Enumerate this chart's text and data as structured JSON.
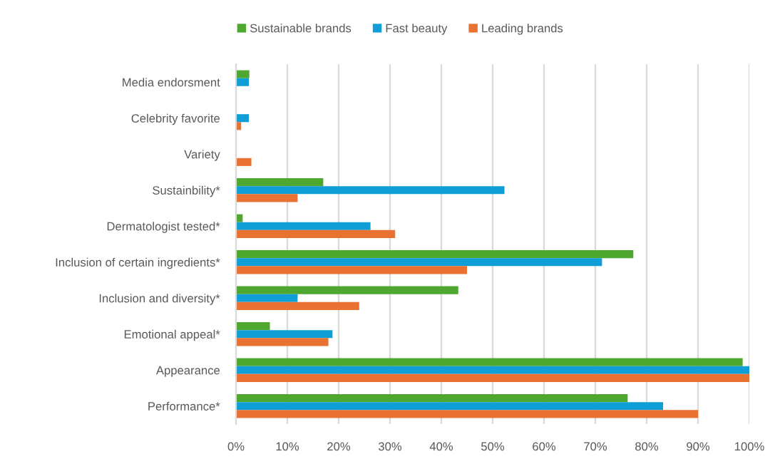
{
  "chart_data": {
    "type": "bar",
    "orientation": "horizontal",
    "categories": [
      "Media endorsment",
      "Celebrity favorite",
      "Variety",
      "Sustainbility*",
      "Dermatologist tested*",
      "Inclusion of certain ingredients*",
      "Inclusion and diversity*",
      "Emotional appeal*",
      "Appearance",
      "Performance*"
    ],
    "series": [
      {
        "name": "Sustainable brands",
        "color": "#4ea72e",
        "values": [
          2.6,
          null,
          null,
          17,
          1.3,
          77.4,
          43.3,
          6.6,
          98.7,
          76.3
        ]
      },
      {
        "name": "Fast beauty",
        "color": "#0f9ed5",
        "values": [
          2.5,
          2.5,
          null,
          52.3,
          26.2,
          71.3,
          12,
          18.8,
          100,
          83.2
        ]
      },
      {
        "name": "Leading brands",
        "color": "#e97132",
        "values": [
          null,
          1,
          3,
          12,
          31,
          45,
          24,
          18,
          100,
          90
        ]
      }
    ],
    "xlim": [
      0,
      100
    ],
    "xticks": [
      {
        "value": 0,
        "label": "0%"
      },
      {
        "value": 10,
        "label": "10%"
      },
      {
        "value": 20,
        "label": "20%"
      },
      {
        "value": 30,
        "label": "30%"
      },
      {
        "value": 40,
        "label": "40%"
      },
      {
        "value": 50,
        "label": "50%"
      },
      {
        "value": 60,
        "label": "60%"
      },
      {
        "value": 70,
        "label": "70%"
      },
      {
        "value": 80,
        "label": "80%"
      },
      {
        "value": 90,
        "label": "90%"
      },
      {
        "value": 100,
        "label": "100%"
      }
    ],
    "grid": "x",
    "legend": "top"
  }
}
